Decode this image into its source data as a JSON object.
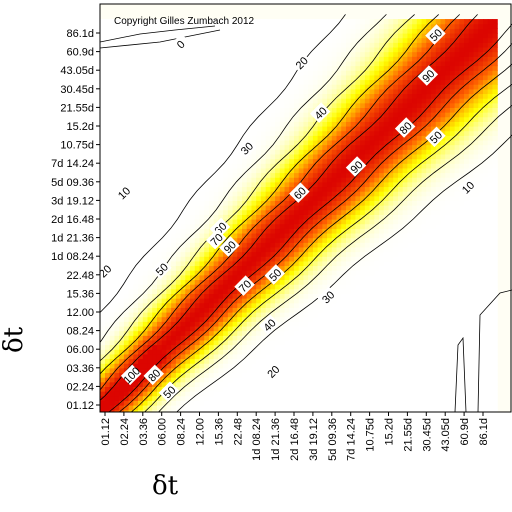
{
  "chart_data": {
    "type": "heatmap",
    "title": "",
    "copyright": "Copyright Gilles Zumbach 2012",
    "xlabel": "δt",
    "ylabel": "δt",
    "tick_labels": [
      "01.12",
      "02.24",
      "03.36",
      "06.00",
      "08.24",
      "12.00",
      "15.36",
      "22.48",
      "1d 08.24",
      "1d 21.36",
      "2d 16.48",
      "3d 19.12",
      "5d 09.36",
      "7d 14.24",
      "10.75d",
      "15.2d",
      "21.55d",
      "30.45d",
      "43.05d",
      "60.9d",
      "86.1d"
    ],
    "contour_levels": [
      0,
      10,
      20,
      30,
      40,
      50,
      60,
      70,
      80,
      90,
      100
    ],
    "contour_labels": [
      {
        "text": "0",
        "x": 4,
        "y": 19.4
      },
      {
        "text": "10",
        "x": 1,
        "y": 11.4
      },
      {
        "text": "20",
        "x": 0,
        "y": 7.2
      },
      {
        "text": "50",
        "x": 3,
        "y": 7.3
      },
      {
        "text": "60",
        "x": 6.1,
        "y": 9.5
      },
      {
        "text": "70",
        "x": 5.9,
        "y": 8.9
      },
      {
        "text": "90",
        "x": 6.6,
        "y": 8.5
      },
      {
        "text": "100",
        "x": 1.4,
        "y": 1.6
      },
      {
        "text": "80",
        "x": 2.6,
        "y": 1.6
      },
      {
        "text": "50",
        "x": 3.4,
        "y": 0.7
      },
      {
        "text": "20",
        "x": 8.9,
        "y": 1.8
      },
      {
        "text": "40",
        "x": 8.7,
        "y": 4.3
      },
      {
        "text": "70",
        "x": 7.4,
        "y": 6.4
      },
      {
        "text": "50",
        "x": 9.0,
        "y": 7.0
      },
      {
        "text": "30",
        "x": 11.8,
        "y": 5.8
      },
      {
        "text": "60",
        "x": 10.3,
        "y": 11.4
      },
      {
        "text": "90",
        "x": 13.3,
        "y": 12.8
      },
      {
        "text": "80",
        "x": 15.9,
        "y": 14.9
      },
      {
        "text": "90",
        "x": 17.1,
        "y": 17.7
      },
      {
        "text": "50",
        "x": 17.5,
        "y": 14.4
      },
      {
        "text": "10",
        "x": 19.2,
        "y": 11.7
      },
      {
        "text": "30",
        "x": 7.5,
        "y": 13.8
      },
      {
        "text": "40",
        "x": 11.4,
        "y": 15.7
      },
      {
        "text": "20",
        "x": 10.4,
        "y": 18.4
      },
      {
        "text": "50",
        "x": 17.5,
        "y": 19.9
      }
    ],
    "color_scale": [
      "#ffffff",
      "#ffff00",
      "#ff0000"
    ],
    "grid": false,
    "legend": "none"
  }
}
